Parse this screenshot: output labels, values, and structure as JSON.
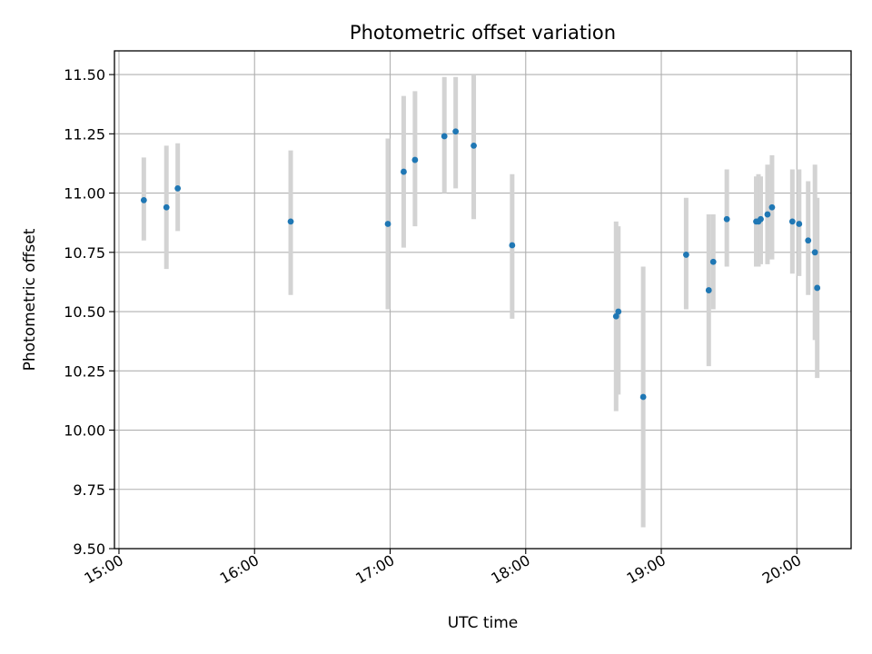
{
  "chart_data": {
    "type": "scatter",
    "title": "Photometric offset variation",
    "xlabel": "UTC time",
    "ylabel": "Photometric offset",
    "x_is_time": true,
    "xlim": [
      "14:58",
      "20:24"
    ],
    "ylim": [
      9.5,
      11.6
    ],
    "x_ticks": [
      "15:00",
      "16:00",
      "17:00",
      "18:00",
      "19:00",
      "20:00"
    ],
    "y_ticks": [
      "9.50",
      "9.75",
      "10.00",
      "10.25",
      "10.50",
      "10.75",
      "11.00",
      "11.25",
      "11.50"
    ],
    "grid": true,
    "colors": {
      "marker": "#1f77b4",
      "errorbar": "#d3d3d3",
      "grid": "#b0b0b0"
    },
    "points": [
      {
        "x": "15:11",
        "y": 10.97,
        "lo": 10.8,
        "hi": 11.15
      },
      {
        "x": "15:21",
        "y": 10.94,
        "lo": 10.68,
        "hi": 11.2
      },
      {
        "x": "15:26",
        "y": 11.02,
        "lo": 10.84,
        "hi": 11.21
      },
      {
        "x": "16:16",
        "y": 10.88,
        "lo": 10.57,
        "hi": 11.18
      },
      {
        "x": "16:59",
        "y": 10.87,
        "lo": 10.51,
        "hi": 11.23
      },
      {
        "x": "17:06",
        "y": 11.09,
        "lo": 10.77,
        "hi": 11.41
      },
      {
        "x": "17:11",
        "y": 11.14,
        "lo": 10.86,
        "hi": 11.43
      },
      {
        "x": "17:24",
        "y": 11.24,
        "lo": 11.0,
        "hi": 11.49
      },
      {
        "x": "17:29",
        "y": 11.26,
        "lo": 11.02,
        "hi": 11.49
      },
      {
        "x": "17:37",
        "y": 11.2,
        "lo": 10.89,
        "hi": 11.5
      },
      {
        "x": "17:54",
        "y": 10.78,
        "lo": 10.47,
        "hi": 11.08
      },
      {
        "x": "18:40",
        "y": 10.48,
        "lo": 10.08,
        "hi": 10.88
      },
      {
        "x": "18:41",
        "y": 10.5,
        "lo": 10.15,
        "hi": 10.86
      },
      {
        "x": "18:52",
        "y": 10.14,
        "lo": 9.59,
        "hi": 10.69
      },
      {
        "x": "19:11",
        "y": 10.74,
        "lo": 10.51,
        "hi": 10.98
      },
      {
        "x": "19:21",
        "y": 10.59,
        "lo": 10.27,
        "hi": 10.91
      },
      {
        "x": "19:23",
        "y": 10.71,
        "lo": 10.51,
        "hi": 10.91
      },
      {
        "x": "19:29",
        "y": 10.89,
        "lo": 10.69,
        "hi": 11.1
      },
      {
        "x": "19:42",
        "y": 10.88,
        "lo": 10.69,
        "hi": 11.07
      },
      {
        "x": "19:43",
        "y": 10.88,
        "lo": 10.69,
        "hi": 11.08
      },
      {
        "x": "19:44",
        "y": 10.89,
        "lo": 10.7,
        "hi": 11.07
      },
      {
        "x": "19:47",
        "y": 10.91,
        "lo": 10.7,
        "hi": 11.12
      },
      {
        "x": "19:49",
        "y": 10.94,
        "lo": 10.72,
        "hi": 11.16
      },
      {
        "x": "19:58",
        "y": 10.88,
        "lo": 10.66,
        "hi": 11.1
      },
      {
        "x": "20:01",
        "y": 10.87,
        "lo": 10.65,
        "hi": 11.1
      },
      {
        "x": "20:05",
        "y": 10.8,
        "lo": 10.57,
        "hi": 11.05
      },
      {
        "x": "20:08",
        "y": 10.75,
        "lo": 10.38,
        "hi": 11.12
      },
      {
        "x": "20:09",
        "y": 10.6,
        "lo": 10.22,
        "hi": 10.98
      }
    ]
  }
}
